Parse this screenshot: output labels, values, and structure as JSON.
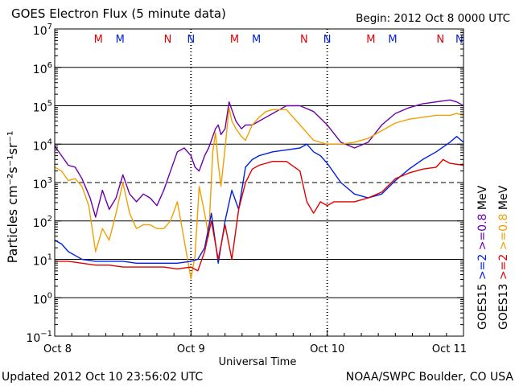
{
  "header": {
    "title": "GOES Electron Flux (5 minute data)",
    "begin": "Begin: 2012 Oct 8 0000 UTC"
  },
  "footer": {
    "updated": "Updated 2012 Oct 10 23:56:02 UTC",
    "source": "NOAA/SWPC Boulder, CO USA"
  },
  "colors": {
    "goes13_0p8": "#f0a000",
    "goes15_0p8": "#6a00a8",
    "goes13_2": "#e00000",
    "goes15_2": "#0020e0"
  },
  "chart_data": {
    "type": "line",
    "title": "GOES Electron Flux (5 minute data)",
    "xlabel": "Universal Time",
    "ylabel": "Particles cm⁻²s⁻¹sr⁻¹",
    "yscale": "log",
    "ylim_exp": [
      -1,
      7
    ],
    "y_ticks": [
      {
        "exp": 7,
        "base": "10",
        "sup": "7"
      },
      {
        "exp": 6,
        "base": "10",
        "sup": "6"
      },
      {
        "exp": 5,
        "base": "10",
        "sup": "5"
      },
      {
        "exp": 4,
        "base": "10",
        "sup": "4"
      },
      {
        "exp": 3,
        "base": "10",
        "sup": "3"
      },
      {
        "exp": 2,
        "base": "10",
        "sup": "2"
      },
      {
        "exp": 1,
        "base": "10",
        "sup": "1"
      },
      {
        "exp": 0,
        "base": "10",
        "sup": "0"
      },
      {
        "exp": -1,
        "base": "10",
        "sup": "−1"
      }
    ],
    "xlim_days": [
      0,
      3
    ],
    "x_ticks": [
      {
        "day": 0,
        "label": "Oct 8"
      },
      {
        "day": 1,
        "label": "Oct 9"
      },
      {
        "day": 2,
        "label": "Oct 10"
      },
      {
        "day": 3,
        "label": "Oct 11"
      }
    ],
    "gridlines_exp": [
      6,
      5,
      4,
      2,
      1,
      0
    ],
    "dashed_gridlines_exp": [
      3
    ],
    "markers": [
      {
        "label": "M",
        "day": 0.32,
        "color": "#e00000"
      },
      {
        "label": "M",
        "day": 0.48,
        "color": "#0020e0"
      },
      {
        "label": "N",
        "day": 0.83,
        "color": "#e00000"
      },
      {
        "label": "N",
        "day": 1.0,
        "color": "#0020e0"
      },
      {
        "label": "M",
        "day": 1.32,
        "color": "#e00000"
      },
      {
        "label": "M",
        "day": 1.48,
        "color": "#0020e0"
      },
      {
        "label": "N",
        "day": 1.83,
        "color": "#e00000"
      },
      {
        "label": "N",
        "day": 2.0,
        "color": "#0020e0"
      },
      {
        "label": "M",
        "day": 2.32,
        "color": "#e00000"
      },
      {
        "label": "M",
        "day": 2.48,
        "color": "#0020e0"
      },
      {
        "label": "N",
        "day": 2.83,
        "color": "#e00000"
      },
      {
        "label": "N",
        "day": 2.97,
        "color": "#0020e0"
      }
    ],
    "right_legend": [
      {
        "label": "GOES13",
        "items": [
          {
            "text": ">=2",
            "color": "#e00000"
          },
          {
            "text": ">=0.8",
            "color": "#f0a000"
          }
        ]
      },
      {
        "label": "GOES15",
        "items": [
          {
            "text": ">=2",
            "color": "#0020e0"
          },
          {
            "text": ">=0.8",
            "color": "#6a00a8"
          }
        ]
      }
    ],
    "legend_unit": "MeV",
    "series": [
      {
        "name": "GOES15 >=0.8 MeV",
        "color": "#6a00a8",
        "x": [
          0,
          0.05,
          0.1,
          0.15,
          0.2,
          0.26,
          0.3,
          0.35,
          0.4,
          0.45,
          0.5,
          0.55,
          0.6,
          0.65,
          0.7,
          0.75,
          0.8,
          0.85,
          0.9,
          0.95,
          1.0,
          1.03,
          1.06,
          1.1,
          1.13,
          1.16,
          1.18,
          1.2,
          1.22,
          1.25,
          1.28,
          1.3,
          1.33,
          1.35,
          1.37,
          1.4,
          1.45,
          1.5,
          1.55,
          1.6,
          1.65,
          1.7,
          1.8,
          1.9,
          2.0,
          2.1,
          2.2,
          2.3,
          2.4,
          2.5,
          2.6,
          2.7,
          2.8,
          2.9,
          2.95,
          3.0
        ],
        "y": [
          3.95,
          3.7,
          3.45,
          3.4,
          3.1,
          2.6,
          2.1,
          2.8,
          2.3,
          2.6,
          3.2,
          2.7,
          2.5,
          2.7,
          2.6,
          2.4,
          2.8,
          3.3,
          3.8,
          3.9,
          3.7,
          3.4,
          3.3,
          3.7,
          3.9,
          4.2,
          4.4,
          4.5,
          4.25,
          4.4,
          5.1,
          4.9,
          4.6,
          4.5,
          4.4,
          4.5,
          4.5,
          4.6,
          4.7,
          4.8,
          4.9,
          5.0,
          5.0,
          4.85,
          4.5,
          4.05,
          3.9,
          4.05,
          4.5,
          4.8,
          4.95,
          5.05,
          5.1,
          5.15,
          5.1,
          5.0
        ]
      },
      {
        "name": "GOES13 >=0.8 MeV",
        "color": "#f0a000",
        "x": [
          0,
          0.05,
          0.1,
          0.15,
          0.2,
          0.25,
          0.3,
          0.35,
          0.4,
          0.45,
          0.5,
          0.55,
          0.6,
          0.65,
          0.7,
          0.75,
          0.8,
          0.85,
          0.9,
          0.95,
          1.0,
          1.03,
          1.06,
          1.1,
          1.13,
          1.16,
          1.18,
          1.2,
          1.22,
          1.25,
          1.28,
          1.3,
          1.33,
          1.35,
          1.37,
          1.4,
          1.45,
          1.5,
          1.55,
          1.6,
          1.65,
          1.7,
          1.8,
          1.9,
          2.0,
          2.1,
          2.2,
          2.3,
          2.4,
          2.5,
          2.6,
          2.7,
          2.8,
          2.9,
          2.95,
          3.0
        ],
        "y": [
          3.4,
          3.3,
          3.05,
          3.1,
          2.9,
          2.4,
          1.2,
          1.8,
          1.5,
          2.2,
          3.0,
          2.2,
          1.8,
          1.9,
          1.9,
          1.8,
          1.8,
          2.0,
          2.5,
          1.5,
          0.5,
          1.1,
          2.9,
          2.2,
          1.6,
          3.8,
          4.3,
          3.5,
          2.9,
          3.9,
          4.95,
          4.6,
          4.4,
          4.3,
          4.2,
          4.1,
          4.5,
          4.7,
          4.85,
          4.9,
          4.9,
          4.9,
          4.5,
          4.1,
          4.0,
          4.0,
          4.05,
          4.15,
          4.35,
          4.55,
          4.65,
          4.7,
          4.75,
          4.75,
          4.8,
          4.75
        ]
      },
      {
        "name": "GOES15 >=2 MeV",
        "color": "#0020e0",
        "x": [
          0,
          0.05,
          0.1,
          0.15,
          0.2,
          0.3,
          0.4,
          0.5,
          0.6,
          0.7,
          0.8,
          0.9,
          1.0,
          1.05,
          1.1,
          1.15,
          1.2,
          1.25,
          1.3,
          1.35,
          1.4,
          1.45,
          1.5,
          1.6,
          1.7,
          1.8,
          1.85,
          1.9,
          1.95,
          2.0,
          2.1,
          2.2,
          2.3,
          2.4,
          2.5,
          2.6,
          2.7,
          2.8,
          2.9,
          2.95,
          3.0
        ],
        "y": [
          1.5,
          1.4,
          1.2,
          1.1,
          1.0,
          0.95,
          0.95,
          0.95,
          0.9,
          0.9,
          0.9,
          0.9,
          0.95,
          1.0,
          1.3,
          2.2,
          0.9,
          2.0,
          2.8,
          2.3,
          3.4,
          3.6,
          3.7,
          3.8,
          3.85,
          3.9,
          4.0,
          3.8,
          3.7,
          3.5,
          3.0,
          2.7,
          2.6,
          2.7,
          3.05,
          3.35,
          3.6,
          3.8,
          4.05,
          4.2,
          4.05
        ]
      },
      {
        "name": "GOES13 >=2 MeV",
        "color": "#e00000",
        "x": [
          0,
          0.1,
          0.2,
          0.3,
          0.4,
          0.5,
          0.6,
          0.7,
          0.8,
          0.9,
          1.0,
          1.05,
          1.1,
          1.15,
          1.2,
          1.25,
          1.3,
          1.35,
          1.4,
          1.45,
          1.5,
          1.6,
          1.7,
          1.8,
          1.85,
          1.9,
          1.95,
          2.0,
          2.05,
          2.1,
          2.2,
          2.3,
          2.4,
          2.5,
          2.6,
          2.7,
          2.8,
          2.85,
          2.9,
          3.0
        ],
        "y": [
          0.95,
          0.95,
          0.9,
          0.85,
          0.85,
          0.8,
          0.8,
          0.8,
          0.8,
          0.75,
          0.8,
          0.7,
          1.2,
          2.0,
          1.0,
          1.9,
          1.0,
          2.3,
          3.0,
          3.35,
          3.45,
          3.55,
          3.55,
          3.3,
          2.5,
          2.2,
          2.5,
          2.4,
          2.5,
          2.5,
          2.5,
          2.6,
          2.75,
          3.1,
          3.25,
          3.35,
          3.4,
          3.6,
          3.5,
          3.45
        ]
      }
    ]
  }
}
